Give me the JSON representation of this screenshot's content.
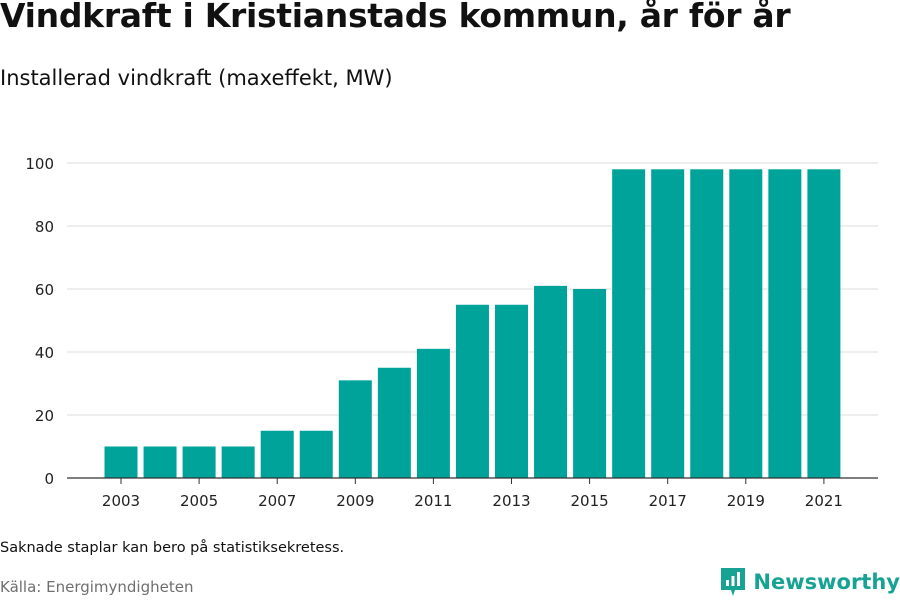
{
  "header": {
    "title": "Vindkraft i Kristianstads kommun, år för år",
    "subtitle": "Installerad vindkraft (maxeffekt, MW)"
  },
  "footer": {
    "note": "Saknade staplar kan bero på statistiksekretess.",
    "source": "Källa: Energimyndigheten",
    "brand": "Newsworthy"
  },
  "colors": {
    "bar": "#00a39a",
    "grid": "#dddddd",
    "axis": "#333333",
    "brand": "#17a394"
  },
  "chart_data": {
    "type": "bar",
    "title": "Vindkraft i Kristianstads kommun, år för år",
    "subtitle": "Installerad vindkraft (maxeffekt, MW)",
    "categories": [
      "2003",
      "2004",
      "2005",
      "2006",
      "2007",
      "2008",
      "2009",
      "2010",
      "2011",
      "2012",
      "2013",
      "2014",
      "2015",
      "2016",
      "2017",
      "2018",
      "2019",
      "2020",
      "2021"
    ],
    "values": [
      10,
      10,
      10,
      10,
      15,
      15,
      31,
      35,
      41,
      55,
      55,
      61,
      60,
      98,
      98,
      98,
      98,
      98,
      98
    ],
    "x_tick_labels": [
      "2003",
      "2005",
      "2007",
      "2009",
      "2011",
      "2013",
      "2015",
      "2017",
      "2019",
      "2021"
    ],
    "y_ticks": [
      0,
      20,
      40,
      60,
      80,
      100
    ],
    "ylim": [
      0,
      100
    ],
    "xlabel": "",
    "ylabel": "",
    "grid": true,
    "legend": "none"
  }
}
